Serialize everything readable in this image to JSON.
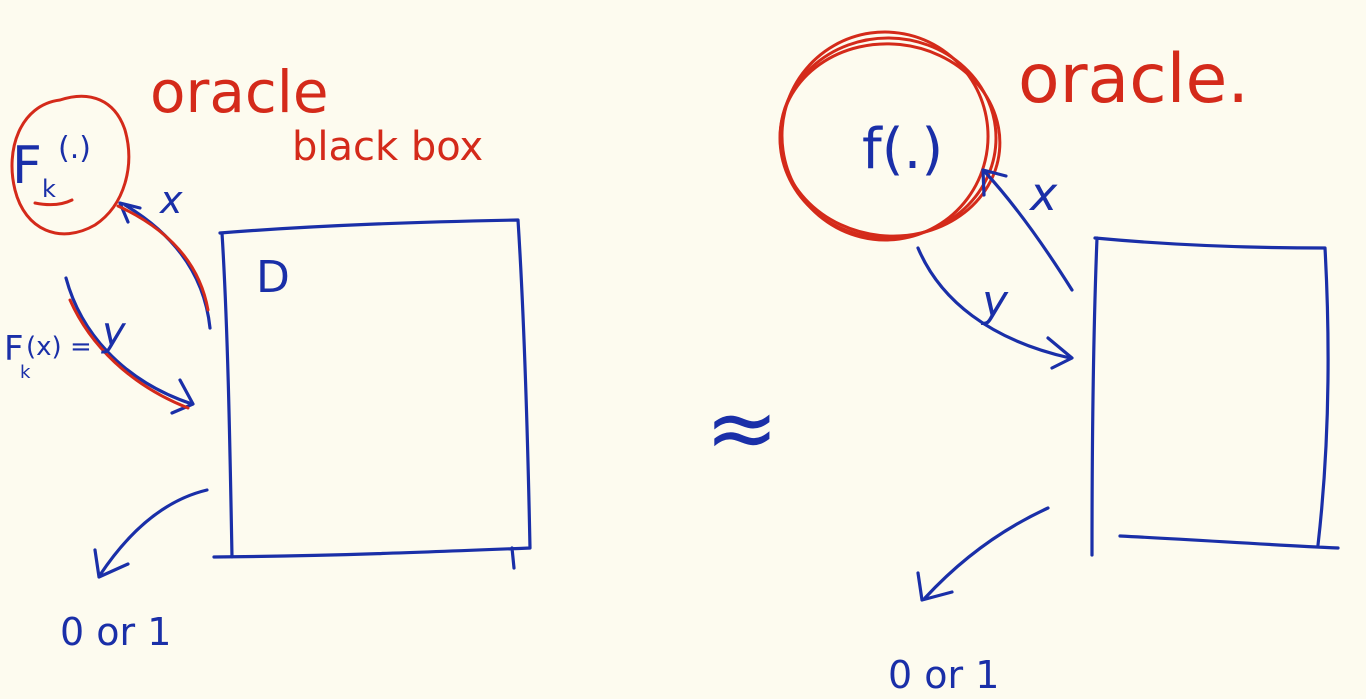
{
  "colors": {
    "background": "#fdfbef",
    "blue_ink": "#1a2fa8",
    "red_ink": "#d42a1a"
  },
  "left": {
    "oracle_label": "oracle",
    "black_box_label": "black box",
    "function_main": "F",
    "function_sub": "k",
    "function_args": "(.)",
    "input_label": "x",
    "output_main": "F",
    "output_sub": "k",
    "output_args": "(x) =",
    "output_var": "y",
    "box_label": "D",
    "result_label": "0 or 1"
  },
  "approx_symbol": "≈",
  "right": {
    "oracle_label": "oracle.",
    "function_label": "f(.)",
    "input_label": "x",
    "output_var": "y",
    "result_label": "0 or 1"
  }
}
